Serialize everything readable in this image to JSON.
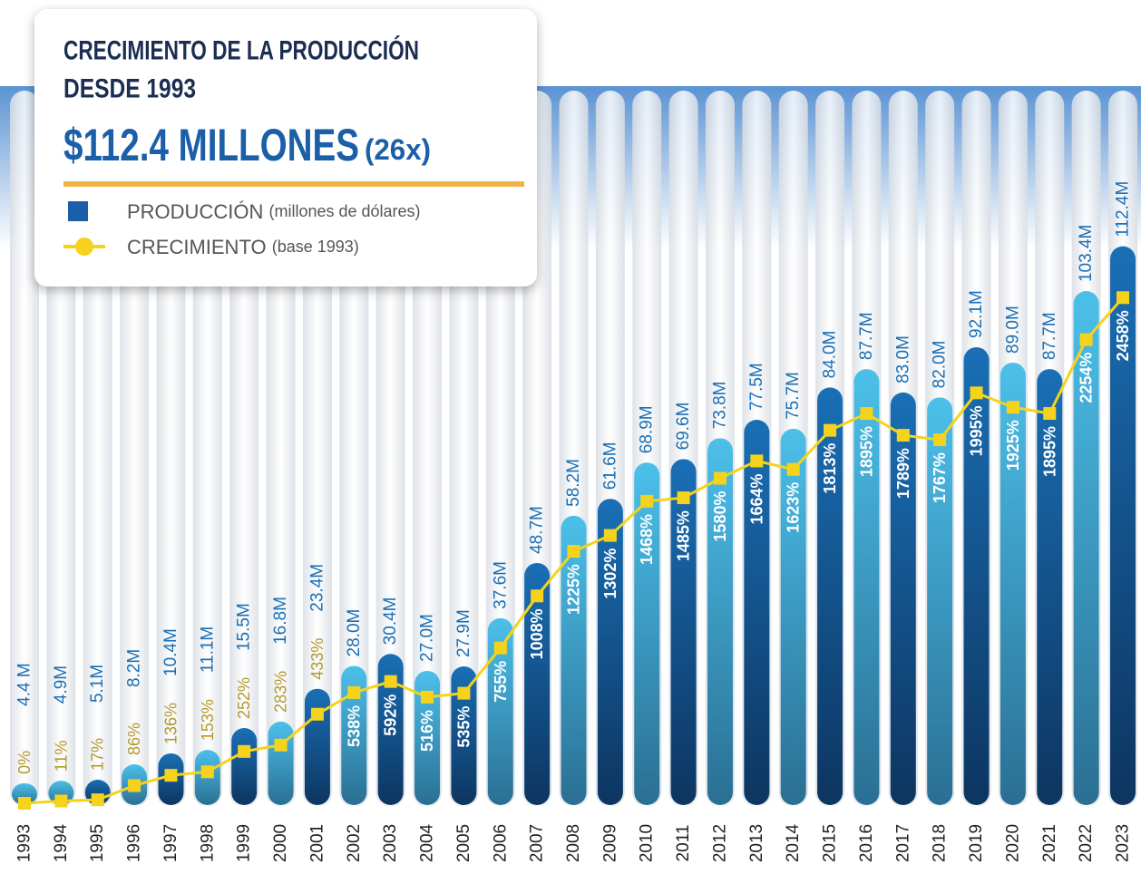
{
  "chart_data": {
    "type": "bar_line",
    "title": [
      "CRECIMIENTO DE LA PRODUCCIÓN",
      "DESDE 1993"
    ],
    "headline": "$112.4 MILLONES",
    "headline_note": "(26x)",
    "categories": [
      "1993",
      "1994",
      "1995",
      "1996",
      "1997",
      "1998",
      "1999",
      "2000",
      "2001",
      "2002",
      "2003",
      "2004",
      "2005",
      "2006",
      "2007",
      "2008",
      "2009",
      "2010",
      "2011",
      "2012",
      "2013",
      "2014",
      "2015",
      "2016",
      "2017",
      "2018",
      "2019",
      "2020",
      "2021",
      "2022",
      "2023"
    ],
    "series": [
      {
        "name": "PRODUCCIÓN",
        "legend_note": "(millones de dólares)",
        "type": "bar",
        "color": "#1a5fa8",
        "colors": [
          "#4cc0ea",
          "#4cc0ea",
          "#1a6fb5",
          "#4cc0ea",
          "#1a6fb5",
          "#4cc0ea",
          "#1a6fb5",
          "#4cc0ea",
          "#1a6fb5",
          "#4cc0ea",
          "#1a6fb5",
          "#4cc0ea",
          "#1a6fb5",
          "#4cc0ea",
          "#1a6fb5",
          "#4cc0ea",
          "#1a6fb5",
          "#4cc0ea",
          "#1a6fb5",
          "#4cc0ea",
          "#1a6fb5",
          "#4cc0ea",
          "#1a6fb5",
          "#4cc0ea",
          "#1a6fb5",
          "#4cc0ea",
          "#1a6fb5",
          "#4cc0ea",
          "#1a6fb5",
          "#4cc0ea",
          "#1a6fb5"
        ],
        "values": [
          4.4,
          4.9,
          5.1,
          8.2,
          10.4,
          11.1,
          15.5,
          16.8,
          23.4,
          28.0,
          30.4,
          27.0,
          27.9,
          37.6,
          48.7,
          58.2,
          61.6,
          68.9,
          69.6,
          73.8,
          77.5,
          75.7,
          84.0,
          87.7,
          83.0,
          82.0,
          92.1,
          89.0,
          87.7,
          103.4,
          112.4
        ],
        "value_labels": [
          "4.4 M",
          "4.9M",
          "5.1M",
          "8.2M",
          "10.4M",
          "11.1M",
          "15.5M",
          "16.8M",
          "23.4M",
          "28.0M",
          "30.4M",
          "27.0M",
          "27.9M",
          "37.6M",
          "48.7M",
          "58.2M",
          "61.6M",
          "68.9M",
          "69.6M",
          "73.8M",
          "77.5M",
          "75.7M",
          "84.0M",
          "87.7M",
          "83.0M",
          "82.0M",
          "92.1M",
          "89.0M",
          "87.7M",
          "103.4M",
          "112.4M"
        ]
      },
      {
        "name": "CRECIMIENTO",
        "legend_note": "(base 1993)",
        "type": "line",
        "axis": "y2",
        "color": "#f5d31c",
        "values": [
          0,
          11,
          17,
          86,
          136,
          153,
          252,
          283,
          433,
          538,
          592,
          516,
          535,
          755,
          1008,
          1225,
          1302,
          1468,
          1485,
          1580,
          1664,
          1623,
          1813,
          1895,
          1789,
          1767,
          1995,
          1925,
          1895,
          2254,
          2458
        ],
        "value_labels": [
          "0%",
          "11%",
          "17%",
          "86%",
          "136%",
          "153%",
          "252%",
          "283%",
          "433%",
          "538%",
          "592%",
          "516%",
          "535%",
          "755%",
          "1008%",
          "1225%",
          "1302%",
          "1468%",
          "1485%",
          "1580%",
          "1664%",
          "1623%",
          "1813%",
          "1895%",
          "1789%",
          "1767%",
          "1995%",
          "1925%",
          "1895%",
          "2254%",
          "2458%"
        ]
      }
    ],
    "ylim": [
      0,
      120
    ],
    "y2lim": [
      0,
      2900
    ]
  }
}
